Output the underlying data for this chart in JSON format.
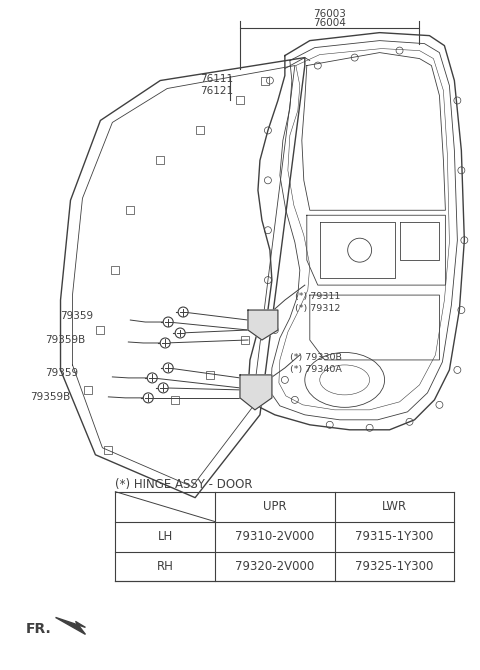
{
  "background_color": "#ffffff",
  "line_color": "#404040",
  "thin_lc": "#555555",
  "table": {
    "title": "(*) HINGE ASSY - DOOR",
    "headers": [
      "",
      "UPR",
      "LWR"
    ],
    "rows": [
      [
        "LH",
        "79310-2V000",
        "79315-1Y300"
      ],
      [
        "RH",
        "79320-2V000",
        "79325-1Y300"
      ]
    ]
  },
  "label_76003": "76003",
  "label_76004": "76004",
  "label_76111": "76111",
  "label_76121": "76121",
  "label_79311": "(*) 79311",
  "label_79312": "(*) 79312",
  "label_79330B": "(*) 79330B",
  "label_79340A": "(*) 79340A",
  "label_79359": "79359",
  "label_79359B": "79359B"
}
